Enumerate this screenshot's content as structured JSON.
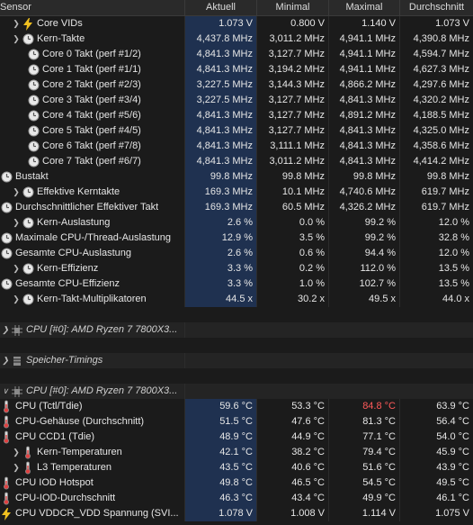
{
  "columns": {
    "sensor": "Sensor",
    "current": "Aktuell",
    "min": "Minimal",
    "max": "Maximal",
    "avg": "Durchschnitt"
  },
  "rows": [
    {
      "indent": 1,
      "chevron": true,
      "icon": "lightning",
      "label": "Core VIDs",
      "current": "1.073 V",
      "min": "0.800 V",
      "max": "1.140 V",
      "avg": "1.073 V"
    },
    {
      "indent": 1,
      "chevron": true,
      "icon": "clock",
      "label": "Kern-Takte",
      "current": "4,437.8 MHz",
      "min": "3,011.2 MHz",
      "max": "4,941.1 MHz",
      "avg": "4,390.8 MHz"
    },
    {
      "indent": 2,
      "chevron": false,
      "icon": "clock",
      "label": "Core 0 Takt (perf #1/2)",
      "current": "4,841.3 MHz",
      "min": "3,127.7 MHz",
      "max": "4,941.1 MHz",
      "avg": "4,594.7 MHz"
    },
    {
      "indent": 2,
      "chevron": false,
      "icon": "clock",
      "label": "Core 1 Takt (perf #1/1)",
      "current": "4,841.3 MHz",
      "min": "3,194.2 MHz",
      "max": "4,941.1 MHz",
      "avg": "4,627.3 MHz"
    },
    {
      "indent": 2,
      "chevron": false,
      "icon": "clock",
      "label": "Core 2 Takt (perf #2/3)",
      "current": "3,227.5 MHz",
      "min": "3,144.3 MHz",
      "max": "4,866.2 MHz",
      "avg": "4,297.6 MHz"
    },
    {
      "indent": 2,
      "chevron": false,
      "icon": "clock",
      "label": "Core 3 Takt (perf #3/4)",
      "current": "3,227.5 MHz",
      "min": "3,127.7 MHz",
      "max": "4,841.3 MHz",
      "avg": "4,320.2 MHz"
    },
    {
      "indent": 2,
      "chevron": false,
      "icon": "clock",
      "label": "Core 4 Takt (perf #5/6)",
      "current": "4,841.3 MHz",
      "min": "3,127.7 MHz",
      "max": "4,891.2 MHz",
      "avg": "4,188.5 MHz"
    },
    {
      "indent": 2,
      "chevron": false,
      "icon": "clock",
      "label": "Core 5 Takt (perf #4/5)",
      "current": "4,841.3 MHz",
      "min": "3,127.7 MHz",
      "max": "4,841.3 MHz",
      "avg": "4,325.0 MHz"
    },
    {
      "indent": 2,
      "chevron": false,
      "icon": "clock",
      "label": "Core 6 Takt (perf #7/8)",
      "current": "4,841.3 MHz",
      "min": "3,111.1 MHz",
      "max": "4,841.3 MHz",
      "avg": "4,358.6 MHz"
    },
    {
      "indent": 2,
      "chevron": false,
      "icon": "clock",
      "label": "Core 7 Takt (perf #6/7)",
      "current": "4,841.3 MHz",
      "min": "3,011.2 MHz",
      "max": "4,841.3 MHz",
      "avg": "4,414.2 MHz"
    },
    {
      "indent": 0,
      "chevron": false,
      "icon": "clock",
      "label": "Bustakt",
      "current": "99.8 MHz",
      "min": "99.8 MHz",
      "max": "99.8 MHz",
      "avg": "99.8 MHz"
    },
    {
      "indent": 1,
      "chevron": true,
      "icon": "clock",
      "label": "Effektive Kerntakte",
      "current": "169.3 MHz",
      "min": "10.1 MHz",
      "max": "4,740.6 MHz",
      "avg": "619.7 MHz"
    },
    {
      "indent": 0,
      "chevron": false,
      "icon": "clock",
      "label": "Durchschnittlicher Effektiver Takt",
      "current": "169.3 MHz",
      "min": "60.5 MHz",
      "max": "4,326.2 MHz",
      "avg": "619.7 MHz"
    },
    {
      "indent": 1,
      "chevron": true,
      "icon": "clock",
      "label": "Kern-Auslastung",
      "current": "2.6 %",
      "min": "0.0 %",
      "max": "99.2 %",
      "avg": "12.0 %"
    },
    {
      "indent": 0,
      "chevron": false,
      "icon": "clock",
      "label": "Maximale CPU-/Thread-Auslastung",
      "current": "12.9 %",
      "min": "3.5 %",
      "max": "99.2 %",
      "avg": "32.8 %"
    },
    {
      "indent": 0,
      "chevron": false,
      "icon": "clock",
      "label": "Gesamte CPU-Auslastung",
      "current": "2.6 %",
      "min": "0.6 %",
      "max": "94.4 %",
      "avg": "12.0 %"
    },
    {
      "indent": 1,
      "chevron": true,
      "icon": "clock",
      "label": "Kern-Effizienz",
      "current": "3.3 %",
      "min": "0.2 %",
      "max": "112.0 %",
      "avg": "13.5 %"
    },
    {
      "indent": 0,
      "chevron": false,
      "icon": "clock",
      "label": "Gesamte CPU-Effizienz",
      "current": "3.3 %",
      "min": "1.0 %",
      "max": "102.7 %",
      "avg": "13.5 %"
    },
    {
      "indent": 1,
      "chevron": true,
      "icon": "clock",
      "label": "Kern-Takt-Multiplikatoren",
      "current": "44.5 x",
      "min": "30.2 x",
      "max": "49.5 x",
      "avg": "44.0 x"
    }
  ],
  "sections": {
    "cpu_enhanced": "CPU [#0]: AMD Ryzen 7 7800X3...",
    "memory_timings": "Speicher-Timings",
    "cpu_thermal": "CPU [#0]: AMD Ryzen 7 7800X3..."
  },
  "thermal_rows": [
    {
      "indent": 0,
      "chevron": false,
      "icon": "thermo",
      "label": "CPU (Tctl/Tdie)",
      "current": "59.6 °C",
      "min": "53.3 °C",
      "max": "84.8 °C",
      "avg": "63.9 °C",
      "max_hot": true
    },
    {
      "indent": 0,
      "chevron": false,
      "icon": "thermo",
      "label": "CPU-Gehäuse (Durchschnitt)",
      "current": "51.5 °C",
      "min": "47.6 °C",
      "max": "81.3 °C",
      "avg": "56.4 °C"
    },
    {
      "indent": 0,
      "chevron": false,
      "icon": "thermo",
      "label": "CPU CCD1 (Tdie)",
      "current": "48.9 °C",
      "min": "44.9 °C",
      "max": "77.1 °C",
      "avg": "54.0 °C"
    },
    {
      "indent": 1,
      "chevron": true,
      "icon": "thermo",
      "label": "Kern-Temperaturen",
      "current": "42.1 °C",
      "min": "38.2 °C",
      "max": "79.4 °C",
      "avg": "45.9 °C"
    },
    {
      "indent": 1,
      "chevron": true,
      "icon": "thermo",
      "label": "L3 Temperaturen",
      "current": "43.5 °C",
      "min": "40.6 °C",
      "max": "51.6 °C",
      "avg": "43.9 °C"
    },
    {
      "indent": 0,
      "chevron": false,
      "icon": "thermo",
      "label": "CPU IOD Hotspot",
      "current": "49.8 °C",
      "min": "46.5 °C",
      "max": "54.5 °C",
      "avg": "49.5 °C"
    },
    {
      "indent": 0,
      "chevron": false,
      "icon": "thermo",
      "label": "CPU-IOD-Durchschnitt",
      "current": "46.3 °C",
      "min": "43.4 °C",
      "max": "49.9 °C",
      "avg": "46.1 °C"
    },
    {
      "indent": 0,
      "chevron": false,
      "icon": "lightning",
      "label": "CPU VDDCR_VDD Spannung (SVI...",
      "current": "1.078 V",
      "min": "1.008 V",
      "max": "1.114 V",
      "avg": "1.075 V"
    }
  ],
  "colors": {
    "hot": "#ff5a5a",
    "highlight_cell": "#1f3150"
  }
}
